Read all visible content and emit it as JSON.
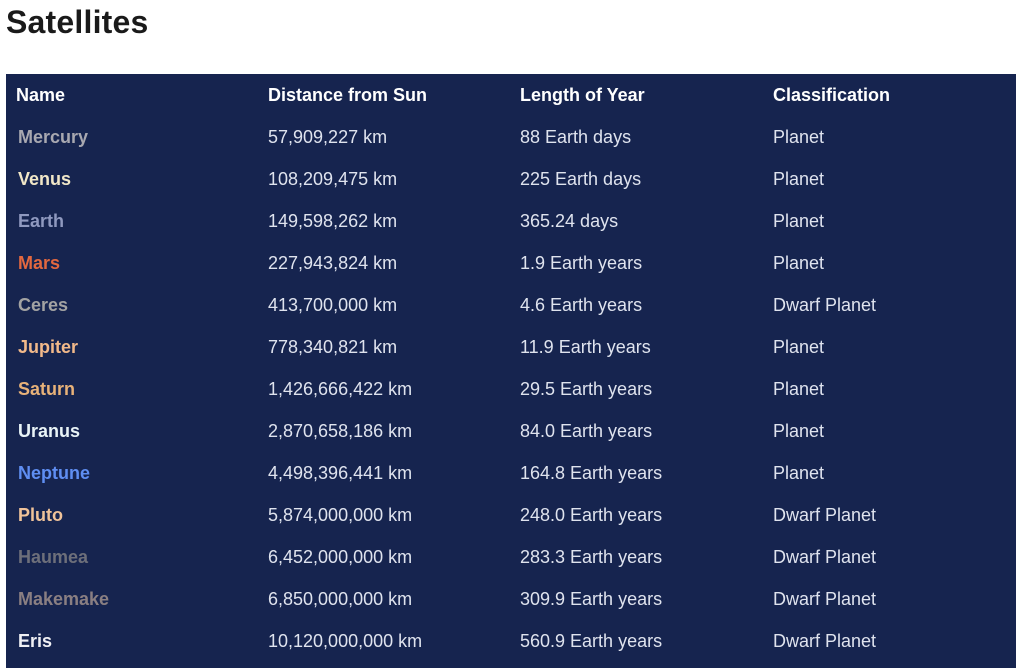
{
  "page": {
    "title": "Satellites"
  },
  "table": {
    "headers": [
      "Name",
      "Distance from Sun",
      "Length of Year",
      "Classification"
    ],
    "rows": [
      {
        "name": "Mercury",
        "distance": "57,909,227 km",
        "year": "88 Earth days",
        "classification": "Planet",
        "name_color": "#a8a8b0"
      },
      {
        "name": "Venus",
        "distance": "108,209,475 km",
        "year": "225 Earth days",
        "classification": "Planet",
        "name_color": "#f1e7c8"
      },
      {
        "name": "Earth",
        "distance": "149,598,262 km",
        "year": "365.24 days",
        "classification": "Planet",
        "name_color": "#8f99bf"
      },
      {
        "name": "Mars",
        "distance": "227,943,824 km",
        "year": "1.9 Earth years",
        "classification": "Planet",
        "name_color": "#e3683f"
      },
      {
        "name": "Ceres",
        "distance": "413,700,000 km",
        "year": "4.6 Earth years",
        "classification": "Dwarf Planet",
        "name_color": "#a3a3a3"
      },
      {
        "name": "Jupiter",
        "distance": "778,340,821 km",
        "year": "11.9 Earth years",
        "classification": "Planet",
        "name_color": "#f2b98a"
      },
      {
        "name": "Saturn",
        "distance": "1,426,666,422 km",
        "year": "29.5 Earth years",
        "classification": "Planet",
        "name_color": "#e8b279"
      },
      {
        "name": "Uranus",
        "distance": "2,870,658,186 km",
        "year": "84.0 Earth years",
        "classification": "Planet",
        "name_color": "#e9f4f7"
      },
      {
        "name": "Neptune",
        "distance": "4,498,396,441 km",
        "year": "164.8 Earth years",
        "classification": "Planet",
        "name_color": "#5f8ef2"
      },
      {
        "name": "Pluto",
        "distance": "5,874,000,000 km",
        "year": "248.0 Earth years",
        "classification": "Dwarf Planet",
        "name_color": "#f0c39a"
      },
      {
        "name": "Haumea",
        "distance": "6,452,000,000 km",
        "year": "283.3 Earth years",
        "classification": "Dwarf Planet",
        "name_color": "#6d6f7a"
      },
      {
        "name": "Makemake",
        "distance": "6,850,000,000 km",
        "year": "309.9 Earth years",
        "classification": "Dwarf Planet",
        "name_color": "#8a7f82"
      },
      {
        "name": "Eris",
        "distance": "10,120,000,000 km",
        "year": "560.9 Earth years",
        "classification": "Dwarf Planet",
        "name_color": "#f0f0f4"
      }
    ]
  },
  "colors": {
    "table_background": "#16244f",
    "header_text": "#ffffff",
    "cell_text": "#dfe3ee",
    "title_text": "#1a1a1a"
  }
}
